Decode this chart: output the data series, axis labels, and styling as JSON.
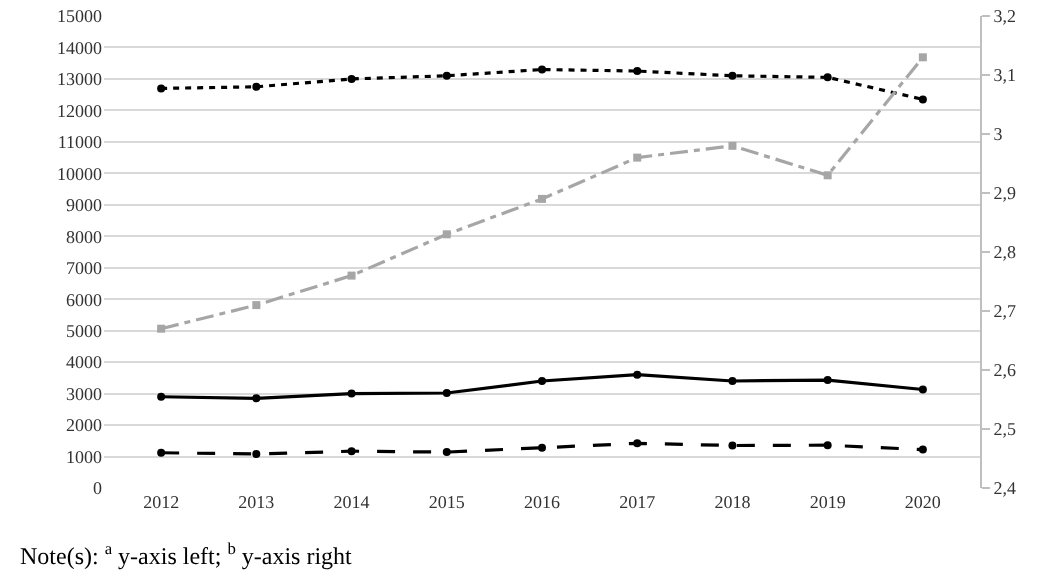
{
  "chart_data": {
    "type": "line",
    "categories": [
      "2012",
      "2013",
      "2014",
      "2015",
      "2016",
      "2017",
      "2018",
      "2019",
      "2020"
    ],
    "series": [
      {
        "color": "#000000",
        "line_style": "dotted",
        "marker": "circle",
        "values": [
          12700,
          12750,
          13000,
          13100,
          13300,
          13250,
          13100,
          13050,
          12350
        ]
      },
      {
        "color": "#a6a6a6",
        "line_style": "dashdot",
        "marker": "square",
        "axis": "y2",
        "values": [
          2.67,
          2.71,
          2.76,
          2.83,
          2.89,
          2.96,
          2.98,
          2.93,
          3.13
        ]
      },
      {
        "color": "#000000",
        "line_style": "solid",
        "marker": "circle",
        "values": [
          2900,
          2850,
          3000,
          3020,
          3400,
          3600,
          3400,
          3430,
          3130
        ]
      },
      {
        "color": "#000000",
        "line_style": "dashed",
        "marker": "circle",
        "values": [
          1120,
          1080,
          1170,
          1140,
          1280,
          1420,
          1350,
          1360,
          1220
        ]
      }
    ],
    "ylim": [
      0,
      15000
    ],
    "yticks": [
      0,
      1000,
      2000,
      3000,
      4000,
      5000,
      6000,
      7000,
      8000,
      9000,
      10000,
      11000,
      12000,
      13000,
      14000,
      15000
    ],
    "y2lim": [
      2.4,
      3.2
    ],
    "y2ticks": [
      {
        "value": 2.4,
        "label": "2,4"
      },
      {
        "value": 2.5,
        "label": "2,5"
      },
      {
        "value": 2.6,
        "label": "2,6"
      },
      {
        "value": 2.7,
        "label": "2,7"
      },
      {
        "value": 2.8,
        "label": "2,8"
      },
      {
        "value": 2.9,
        "label": "2,9"
      },
      {
        "value": 3.0,
        "label": "3"
      },
      {
        "value": 3.1,
        "label": "3,1"
      },
      {
        "value": 3.2,
        "label": "3,2"
      }
    ],
    "grid": "y",
    "annotations": [
      "Note(s): $^{a}$ y-axis left; $^{b}$ y-axis right"
    ]
  }
}
